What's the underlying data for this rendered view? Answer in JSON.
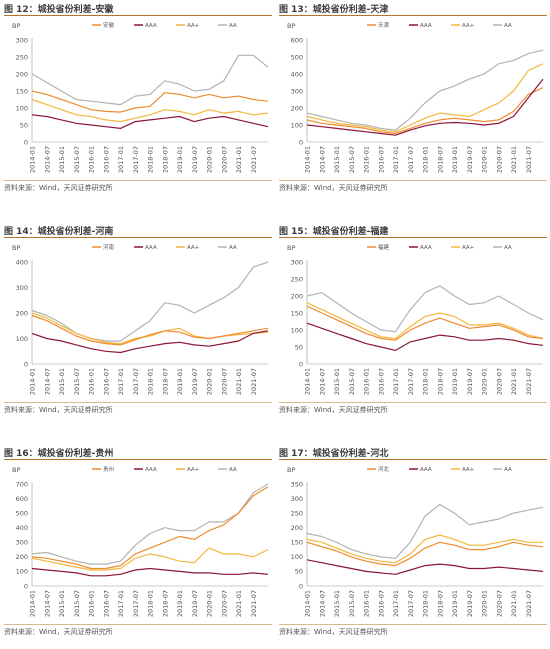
{
  "source_text": "资料来源：Wind，天风证券研究所",
  "colors": {
    "province": "#ef8b2f",
    "AAA": "#8b1538",
    "AA+": "#f4b73d",
    "AA": "#b3b3b3"
  },
  "panels": [
    {
      "title": "图 12：城投省份利差-安徽",
      "chart_data": {
        "type": "line",
        "ylabel": "BP",
        "ylim": [
          0,
          300
        ],
        "yticks": [
          0,
          50,
          100,
          150,
          200,
          250,
          300
        ],
        "categories": [
          "2014-01",
          "2014-07",
          "2015-01",
          "2015-07",
          "2016-01",
          "2016-07",
          "2017-01",
          "2017-07",
          "2018-01",
          "2018-07",
          "2019-01",
          "2019-07",
          "2020-01",
          "2020-07",
          "2021-01",
          "2021-07",
          "2021-10"
        ],
        "series": [
          {
            "name": "安徽",
            "key": "province",
            "values": [
              150,
              140,
              125,
              110,
              95,
              90,
              88,
              100,
              105,
              145,
              140,
              130,
              140,
              130,
              135,
              125,
              120
            ]
          },
          {
            "name": "AAA",
            "key": "AAA",
            "values": [
              80,
              75,
              65,
              55,
              50,
              45,
              40,
              60,
              65,
              70,
              75,
              60,
              70,
              75,
              65,
              55,
              45
            ]
          },
          {
            "name": "AA+",
            "key": "AA+",
            "values": [
              125,
              110,
              95,
              80,
              75,
              65,
              60,
              70,
              80,
              95,
              90,
              80,
              95,
              85,
              90,
              80,
              85
            ]
          },
          {
            "name": "AA",
            "key": "AA",
            "values": [
              200,
              175,
              150,
              125,
              120,
              115,
              110,
              135,
              140,
              180,
              170,
              150,
              155,
              180,
              255,
              255,
              220
            ]
          }
        ]
      }
    },
    {
      "title": "图 13：城投省份利差-天津",
      "chart_data": {
        "type": "line",
        "ylabel": "BP",
        "ylim": [
          0,
          600
        ],
        "yticks": [
          0,
          100,
          200,
          300,
          400,
          500,
          600
        ],
        "categories": [
          "2014-01",
          "2014-07",
          "2015-01",
          "2015-07",
          "2016-01",
          "2016-07",
          "2017-01",
          "2017-07",
          "2018-01",
          "2018-07",
          "2019-01",
          "2019-07",
          "2020-01",
          "2020-07",
          "2021-01",
          "2021-07",
          "2021-10"
        ],
        "series": [
          {
            "name": "天津",
            "key": "province",
            "values": [
              130,
              110,
              100,
              90,
              80,
              60,
              50,
              80,
              110,
              130,
              140,
              130,
              120,
              130,
              180,
              280,
              320
            ]
          },
          {
            "name": "AAA",
            "key": "AAA",
            "values": [
              100,
              90,
              80,
              70,
              60,
              50,
              40,
              70,
              95,
              110,
              115,
              110,
              100,
              110,
              150,
              260,
              370
            ]
          },
          {
            "name": "AA+",
            "key": "AA+",
            "values": [
              150,
              130,
              110,
              100,
              90,
              70,
              60,
              100,
              140,
              170,
              160,
              150,
              190,
              230,
              300,
              420,
              460
            ]
          },
          {
            "name": "AA",
            "key": "AA",
            "values": [
              170,
              150,
              130,
              110,
              100,
              80,
              70,
              140,
              230,
              300,
              330,
              370,
              400,
              460,
              480,
              520,
              540
            ]
          }
        ]
      }
    },
    {
      "title": "图 14：城投省份利差-河南",
      "chart_data": {
        "type": "line",
        "ylabel": "BP",
        "ylim": [
          0,
          400
        ],
        "yticks": [
          0,
          100,
          200,
          300,
          400
        ],
        "categories": [
          "2014-01",
          "2014-07",
          "2015-01",
          "2015-07",
          "2016-01",
          "2016-07",
          "2017-01",
          "2017-07",
          "2018-01",
          "2018-07",
          "2019-01",
          "2019-07",
          "2020-01",
          "2020-07",
          "2021-01",
          "2021-07",
          "2021-10"
        ],
        "series": [
          {
            "name": "河南",
            "key": "province",
            "values": [
              190,
              170,
              140,
              110,
              90,
              80,
              75,
              95,
              115,
              130,
              125,
              105,
              100,
              110,
              120,
              130,
              140
            ]
          },
          {
            "name": "AAA",
            "key": "AAA",
            "values": [
              120,
              100,
              90,
              75,
              60,
              50,
              45,
              60,
              70,
              80,
              85,
              75,
              70,
              80,
              90,
              120,
              130
            ]
          },
          {
            "name": "AA+",
            "key": "AA+",
            "values": [
              200,
              180,
              150,
              120,
              100,
              85,
              80,
              100,
              110,
              130,
              140,
              110,
              100,
              110,
              115,
              120,
              125
            ]
          },
          {
            "name": "AA",
            "key": "AA",
            "values": [
              210,
              190,
              160,
              120,
              100,
              90,
              90,
              130,
              170,
              240,
              230,
              200,
              230,
              260,
              300,
              380,
              400
            ]
          }
        ]
      }
    },
    {
      "title": "图 15：城投省份利差-福建",
      "chart_data": {
        "type": "line",
        "ylabel": "BP",
        "ylim": [
          0,
          300
        ],
        "yticks": [
          0,
          50,
          100,
          150,
          200,
          250,
          300
        ],
        "categories": [
          "2014-01",
          "2014-07",
          "2015-01",
          "2015-07",
          "2016-01",
          "2016-07",
          "2017-01",
          "2017-07",
          "2018-01",
          "2018-07",
          "2019-01",
          "2019-07",
          "2020-01",
          "2020-07",
          "2021-01",
          "2021-07",
          "2021-10"
        ],
        "series": [
          {
            "name": "福建",
            "key": "province",
            "values": [
              170,
              150,
              130,
              110,
              90,
              75,
              70,
              100,
              120,
              135,
              120,
              105,
              110,
              115,
              100,
              80,
              75
            ]
          },
          {
            "name": "AAA",
            "key": "AAA",
            "values": [
              120,
              105,
              90,
              75,
              60,
              50,
              40,
              65,
              75,
              85,
              80,
              70,
              70,
              75,
              70,
              60,
              55
            ]
          },
          {
            "name": "AA+",
            "key": "AA+",
            "values": [
              180,
              160,
              140,
              120,
              100,
              80,
              75,
              110,
              140,
              150,
              140,
              115,
              115,
              120,
              105,
              85,
              75
            ]
          },
          {
            "name": "AA",
            "key": "AA",
            "values": [
              200,
              210,
              180,
              150,
              125,
              100,
              95,
              160,
              210,
              230,
              200,
              175,
              180,
              200,
              175,
              150,
              130
            ]
          }
        ]
      }
    },
    {
      "title": "图 16：城投省份利差-贵州",
      "chart_data": {
        "type": "line",
        "ylabel": "BP",
        "ylim": [
          0,
          700
        ],
        "yticks": [
          0,
          100,
          200,
          300,
          400,
          500,
          600,
          700
        ],
        "categories": [
          "2014-01",
          "2014-07",
          "2015-01",
          "2015-07",
          "2016-01",
          "2016-07",
          "2017-01",
          "2017-07",
          "2018-01",
          "2018-07",
          "2019-01",
          "2019-07",
          "2020-01",
          "2020-07",
          "2021-01",
          "2021-07",
          "2021-10"
        ],
        "series": [
          {
            "name": "贵州",
            "key": "province",
            "values": [
              200,
              190,
              170,
              150,
              120,
              120,
              140,
              220,
              260,
              300,
              340,
              320,
              380,
              420,
              500,
              620,
              680
            ]
          },
          {
            "name": "AAA",
            "key": "AAA",
            "values": [
              120,
              110,
              100,
              90,
              70,
              70,
              80,
              110,
              120,
              110,
              100,
              90,
              90,
              80,
              80,
              90,
              80
            ]
          },
          {
            "name": "AA+",
            "key": "AA+",
            "values": [
              190,
              170,
              150,
              130,
              110,
              110,
              120,
              190,
              220,
              200,
              170,
              160,
              260,
              220,
              220,
              200,
              250
            ]
          },
          {
            "name": "AA",
            "key": "AA",
            "values": [
              220,
              230,
              200,
              170,
              150,
              150,
              170,
              280,
              360,
              400,
              380,
              380,
              440,
              440,
              500,
              640,
              700
            ]
          }
        ]
      }
    },
    {
      "title": "图 17：城投省份利差-河北",
      "chart_data": {
        "type": "line",
        "ylabel": "BP",
        "ylim": [
          0,
          350
        ],
        "yticks": [
          0,
          50,
          100,
          150,
          200,
          250,
          300,
          350
        ],
        "categories": [
          "2014-01",
          "2014-07",
          "2015-01",
          "2015-07",
          "2016-01",
          "2016-07",
          "2017-01",
          "2017-07",
          "2018-01",
          "2018-07",
          "2019-01",
          "2019-07",
          "2020-01",
          "2020-07",
          "2021-01",
          "2021-07",
          "2021-10"
        ],
        "series": [
          {
            "name": "河北",
            "key": "province",
            "values": [
              150,
              135,
              120,
              100,
              85,
              75,
              70,
              95,
              130,
              150,
              140,
              125,
              125,
              135,
              150,
              140,
              135
            ]
          },
          {
            "name": "AAA",
            "key": "AAA",
            "values": [
              90,
              80,
              70,
              60,
              50,
              45,
              40,
              55,
              70,
              75,
              70,
              60,
              60,
              65,
              60,
              55,
              50
            ]
          },
          {
            "name": "AA+",
            "key": "AA+",
            "values": [
              160,
              150,
              130,
              110,
              95,
              85,
              80,
              110,
              160,
              175,
              160,
              140,
              140,
              150,
              160,
              150,
              150
            ]
          },
          {
            "name": "AA",
            "key": "AA",
            "values": [
              180,
              170,
              150,
              125,
              110,
              100,
              95,
              150,
              240,
              280,
              250,
              210,
              220,
              230,
              250,
              260,
              270
            ]
          }
        ]
      }
    }
  ]
}
